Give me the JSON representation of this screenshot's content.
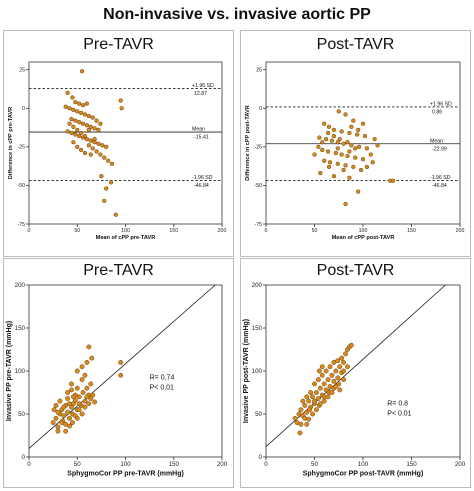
{
  "figure_title": "Non-invasive vs. invasive aortic PP",
  "chart_data": [
    {
      "type": "scatter",
      "subtype": "bland-altman",
      "title": "Pre-TAVR",
      "xlabel": "Mean of cPP pre-TAVR",
      "ylabel": "Difference in cPP pre-TAVR",
      "xlim": [
        0,
        200
      ],
      "ylim": [
        -75,
        30
      ],
      "xticks": [
        0,
        50,
        100,
        150,
        200
      ],
      "yticks": [
        25,
        0,
        -25,
        -50,
        -75
      ],
      "ytick_labels": [
        "25",
        "0",
        "-25",
        "-50",
        "-75"
      ],
      "xtick_labels": [
        "0",
        "50",
        "100",
        "150",
        "200"
      ],
      "lines": [
        {
          "label": "+1.96 SD",
          "value_label": "12.87",
          "y": 12.87,
          "style": "dashed"
        },
        {
          "label": "Mean",
          "value_label": "-15.41",
          "y": -15.41,
          "style": "solid"
        },
        {
          "label": "-1.96 SD",
          "value_label": "-46.84",
          "y": -46.84,
          "style": "dashed"
        }
      ],
      "points": [
        [
          55,
          24
        ],
        [
          40,
          10
        ],
        [
          45,
          7
        ],
        [
          48,
          4
        ],
        [
          52,
          3
        ],
        [
          56,
          2
        ],
        [
          60,
          3
        ],
        [
          38,
          1
        ],
        [
          42,
          0
        ],
        [
          46,
          -1
        ],
        [
          50,
          -2
        ],
        [
          54,
          -3
        ],
        [
          58,
          -4
        ],
        [
          62,
          -5
        ],
        [
          66,
          -6
        ],
        [
          44,
          -7
        ],
        [
          48,
          -8
        ],
        [
          52,
          -9
        ],
        [
          56,
          -10
        ],
        [
          60,
          -11
        ],
        [
          64,
          -12
        ],
        [
          68,
          -13
        ],
        [
          72,
          -14
        ],
        [
          40,
          -15
        ],
        [
          44,
          -16
        ],
        [
          48,
          -17
        ],
        [
          52,
          -18
        ],
        [
          56,
          -19
        ],
        [
          60,
          -20
        ],
        [
          64,
          -21
        ],
        [
          68,
          -22
        ],
        [
          72,
          -23
        ],
        [
          76,
          -24
        ],
        [
          80,
          -25
        ],
        [
          42,
          -10
        ],
        [
          46,
          -12
        ],
        [
          50,
          -14
        ],
        [
          54,
          -16
        ],
        [
          58,
          -18
        ],
        [
          62,
          -24
        ],
        [
          66,
          -26
        ],
        [
          70,
          -28
        ],
        [
          74,
          -30
        ],
        [
          78,
          -32
        ],
        [
          82,
          -34
        ],
        [
          86,
          -36
        ],
        [
          75,
          -44
        ],
        [
          80,
          -52
        ],
        [
          78,
          -60
        ],
        [
          85,
          -48
        ],
        [
          90,
          -69
        ],
        [
          95,
          5
        ],
        [
          96,
          0
        ],
        [
          70,
          -8
        ],
        [
          74,
          -10
        ],
        [
          62,
          -14
        ],
        [
          46,
          -22
        ],
        [
          50,
          -25
        ],
        [
          54,
          -27
        ],
        [
          58,
          -29
        ],
        [
          64,
          -30
        ],
        [
          68,
          -20
        ]
      ]
    },
    {
      "type": "scatter",
      "subtype": "bland-altman",
      "title": "Post-TAVR",
      "xlabel": "Mean of cPP post-TAVR",
      "ylabel": "Difference in cPP post-TAVR",
      "xlim": [
        0,
        200
      ],
      "ylim": [
        -75,
        30
      ],
      "xticks": [
        0,
        50,
        100,
        150,
        200
      ],
      "yticks": [
        25,
        0,
        -25,
        -50,
        -75
      ],
      "ytick_labels": [
        "25",
        "0",
        "-25",
        "-50",
        "-75"
      ],
      "xtick_labels": [
        "0",
        "50",
        "100",
        "150",
        "200"
      ],
      "lines": [
        {
          "label": "+1.96 SD",
          "value_label": "0.86",
          "y": 0.86,
          "style": "dashed"
        },
        {
          "label": "Mean",
          "value_label": "-22.99",
          "y": -22.99,
          "style": "solid"
        },
        {
          "label": "-1.96 SD",
          "value_label": "-46.84",
          "y": -46.84,
          "style": "dashed"
        }
      ],
      "points": [
        [
          75,
          -2
        ],
        [
          82,
          -4
        ],
        [
          90,
          -8
        ],
        [
          60,
          -10
        ],
        [
          65,
          -12
        ],
        [
          70,
          -14
        ],
        [
          78,
          -15
        ],
        [
          86,
          -16
        ],
        [
          94,
          -17
        ],
        [
          102,
          -18
        ],
        [
          55,
          -19
        ],
        [
          62,
          -20
        ],
        [
          68,
          -21
        ],
        [
          74,
          -22
        ],
        [
          80,
          -23
        ],
        [
          88,
          -24
        ],
        [
          96,
          -25
        ],
        [
          104,
          -26
        ],
        [
          58,
          -27
        ],
        [
          64,
          -28
        ],
        [
          72,
          -29
        ],
        [
          78,
          -30
        ],
        [
          84,
          -31
        ],
        [
          92,
          -32
        ],
        [
          100,
          -33
        ],
        [
          108,
          -30
        ],
        [
          60,
          -34
        ],
        [
          66,
          -35
        ],
        [
          74,
          -36
        ],
        [
          82,
          -37
        ],
        [
          90,
          -38
        ],
        [
          98,
          -40
        ],
        [
          56,
          -42
        ],
        [
          70,
          -44
        ],
        [
          86,
          -45
        ],
        [
          112,
          -20
        ],
        [
          115,
          -24
        ],
        [
          110,
          -35
        ],
        [
          70,
          -18
        ],
        [
          76,
          -20
        ],
        [
          84,
          -22
        ],
        [
          92,
          -26
        ],
        [
          50,
          -30
        ],
        [
          54,
          -25
        ],
        [
          88,
          -12
        ],
        [
          95,
          -14
        ],
        [
          100,
          -10
        ],
        [
          80,
          -40
        ],
        [
          65,
          -38
        ],
        [
          104,
          -38
        ],
        [
          128,
          -47
        ],
        [
          131,
          -47
        ],
        [
          82,
          -62
        ],
        [
          95,
          -54
        ],
        [
          74,
          -26
        ],
        [
          86,
          -28
        ],
        [
          64,
          -16
        ],
        [
          58,
          -22
        ]
      ]
    },
    {
      "type": "scatter",
      "title": "Pre-TAVR",
      "xlabel": "SphygmoCor PP pre-TAVR (mmHg)",
      "ylabel": "Invasive PP pre-TAVR (mmHg)",
      "xlim": [
        0,
        200
      ],
      "ylim": [
        0,
        200
      ],
      "xticks": [
        0,
        50,
        100,
        150,
        200
      ],
      "yticks": [
        0,
        50,
        100,
        150,
        200
      ],
      "xtick_labels": [
        "0",
        "50",
        "100",
        "150",
        "200"
      ],
      "ytick_labels": [
        "0",
        "50",
        "100",
        "150",
        "200"
      ],
      "fit_line": {
        "x": [
          0,
          193
        ],
        "y": [
          10,
          200
        ]
      },
      "annotations": [
        "R= 0,74",
        "P< 0,01"
      ],
      "points": [
        [
          25,
          40
        ],
        [
          28,
          45
        ],
        [
          30,
          35
        ],
        [
          32,
          50
        ],
        [
          34,
          55
        ],
        [
          36,
          48
        ],
        [
          38,
          60
        ],
        [
          40,
          52
        ],
        [
          42,
          45
        ],
        [
          44,
          58
        ],
        [
          46,
          62
        ],
        [
          48,
          66
        ],
        [
          50,
          55
        ],
        [
          52,
          70
        ],
        [
          54,
          60
        ],
        [
          56,
          75
        ],
        [
          58,
          65
        ],
        [
          60,
          80
        ],
        [
          62,
          72
        ],
        [
          64,
          85
        ],
        [
          35,
          42
        ],
        [
          38,
          38
        ],
        [
          40,
          68
        ],
        [
          42,
          62
        ],
        [
          45,
          50
        ],
        [
          48,
          72
        ],
        [
          50,
          80
        ],
        [
          52,
          62
        ],
        [
          55,
          90
        ],
        [
          58,
          95
        ],
        [
          60,
          110
        ],
        [
          62,
          128
        ],
        [
          50,
          100
        ],
        [
          55,
          105
        ],
        [
          65,
          115
        ],
        [
          95,
          110
        ],
        [
          95,
          95
        ],
        [
          28,
          60
        ],
        [
          30,
          30
        ],
        [
          32,
          65
        ],
        [
          45,
          40
        ],
        [
          55,
          50
        ],
        [
          40,
          75
        ],
        [
          44,
          78
        ],
        [
          46,
          70
        ],
        [
          48,
          48
        ],
        [
          36,
          58
        ],
        [
          30,
          52
        ],
        [
          34,
          40
        ],
        [
          52,
          55
        ],
        [
          58,
          58
        ],
        [
          62,
          62
        ],
        [
          64,
          68
        ],
        [
          66,
          72
        ],
        [
          68,
          64
        ],
        [
          26,
          55
        ],
        [
          44,
          85
        ],
        [
          50,
          45
        ],
        [
          42,
          36
        ],
        [
          38,
          30
        ],
        [
          60,
          70
        ]
      ]
    },
    {
      "type": "scatter",
      "title": "Post-TAVR",
      "xlabel": "SphygmoCor PP post-TAVR (mmHg)",
      "ylabel": "Invasive PP post-TAVR (mmHg)",
      "xlim": [
        0,
        200
      ],
      "ylim": [
        0,
        200
      ],
      "xticks": [
        0,
        50,
        100,
        150,
        200
      ],
      "yticks": [
        0,
        50,
        100,
        150,
        200
      ],
      "xtick_labels": [
        "0",
        "50",
        "100",
        "150",
        "200"
      ],
      "ytick_labels": [
        "0",
        "50",
        "100",
        "150",
        "200"
      ],
      "fit_line": {
        "x": [
          0,
          185
        ],
        "y": [
          12,
          200
        ]
      },
      "annotations": [
        "R= 0.8",
        "P< 0.01"
      ],
      "points": [
        [
          30,
          45
        ],
        [
          32,
          40
        ],
        [
          34,
          50
        ],
        [
          36,
          55
        ],
        [
          38,
          48
        ],
        [
          40,
          60
        ],
        [
          42,
          52
        ],
        [
          44,
          65
        ],
        [
          46,
          58
        ],
        [
          48,
          70
        ],
        [
          50,
          62
        ],
        [
          52,
          75
        ],
        [
          54,
          68
        ],
        [
          56,
          80
        ],
        [
          58,
          72
        ],
        [
          60,
          85
        ],
        [
          62,
          78
        ],
        [
          64,
          90
        ],
        [
          66,
          82
        ],
        [
          68,
          95
        ],
        [
          70,
          88
        ],
        [
          72,
          100
        ],
        [
          74,
          92
        ],
        [
          76,
          105
        ],
        [
          78,
          98
        ],
        [
          80,
          110
        ],
        [
          82,
          120
        ],
        [
          84,
          125
        ],
        [
          86,
          128
        ],
        [
          88,
          130
        ],
        [
          40,
          45
        ],
        [
          45,
          55
        ],
        [
          50,
          65
        ],
        [
          55,
          60
        ],
        [
          60,
          70
        ],
        [
          65,
          75
        ],
        [
          70,
          80
        ],
        [
          75,
          85
        ],
        [
          80,
          90
        ],
        [
          38,
          65
        ],
        [
          42,
          70
        ],
        [
          46,
          75
        ],
        [
          50,
          85
        ],
        [
          54,
          90
        ],
        [
          58,
          95
        ],
        [
          62,
          100
        ],
        [
          66,
          105
        ],
        [
          70,
          110
        ],
        [
          48,
          50
        ],
        [
          52,
          55
        ],
        [
          56,
          62
        ],
        [
          44,
          44
        ],
        [
          36,
          38
        ],
        [
          60,
          65
        ],
        [
          64,
          70
        ],
        [
          68,
          75
        ],
        [
          72,
          82
        ],
        [
          76,
          78
        ],
        [
          80,
          100
        ],
        [
          84,
          105
        ],
        [
          35,
          28
        ],
        [
          42,
          38
        ],
        [
          55,
          100
        ],
        [
          58,
          105
        ],
        [
          74,
          112
        ],
        [
          78,
          115
        ]
      ]
    }
  ]
}
